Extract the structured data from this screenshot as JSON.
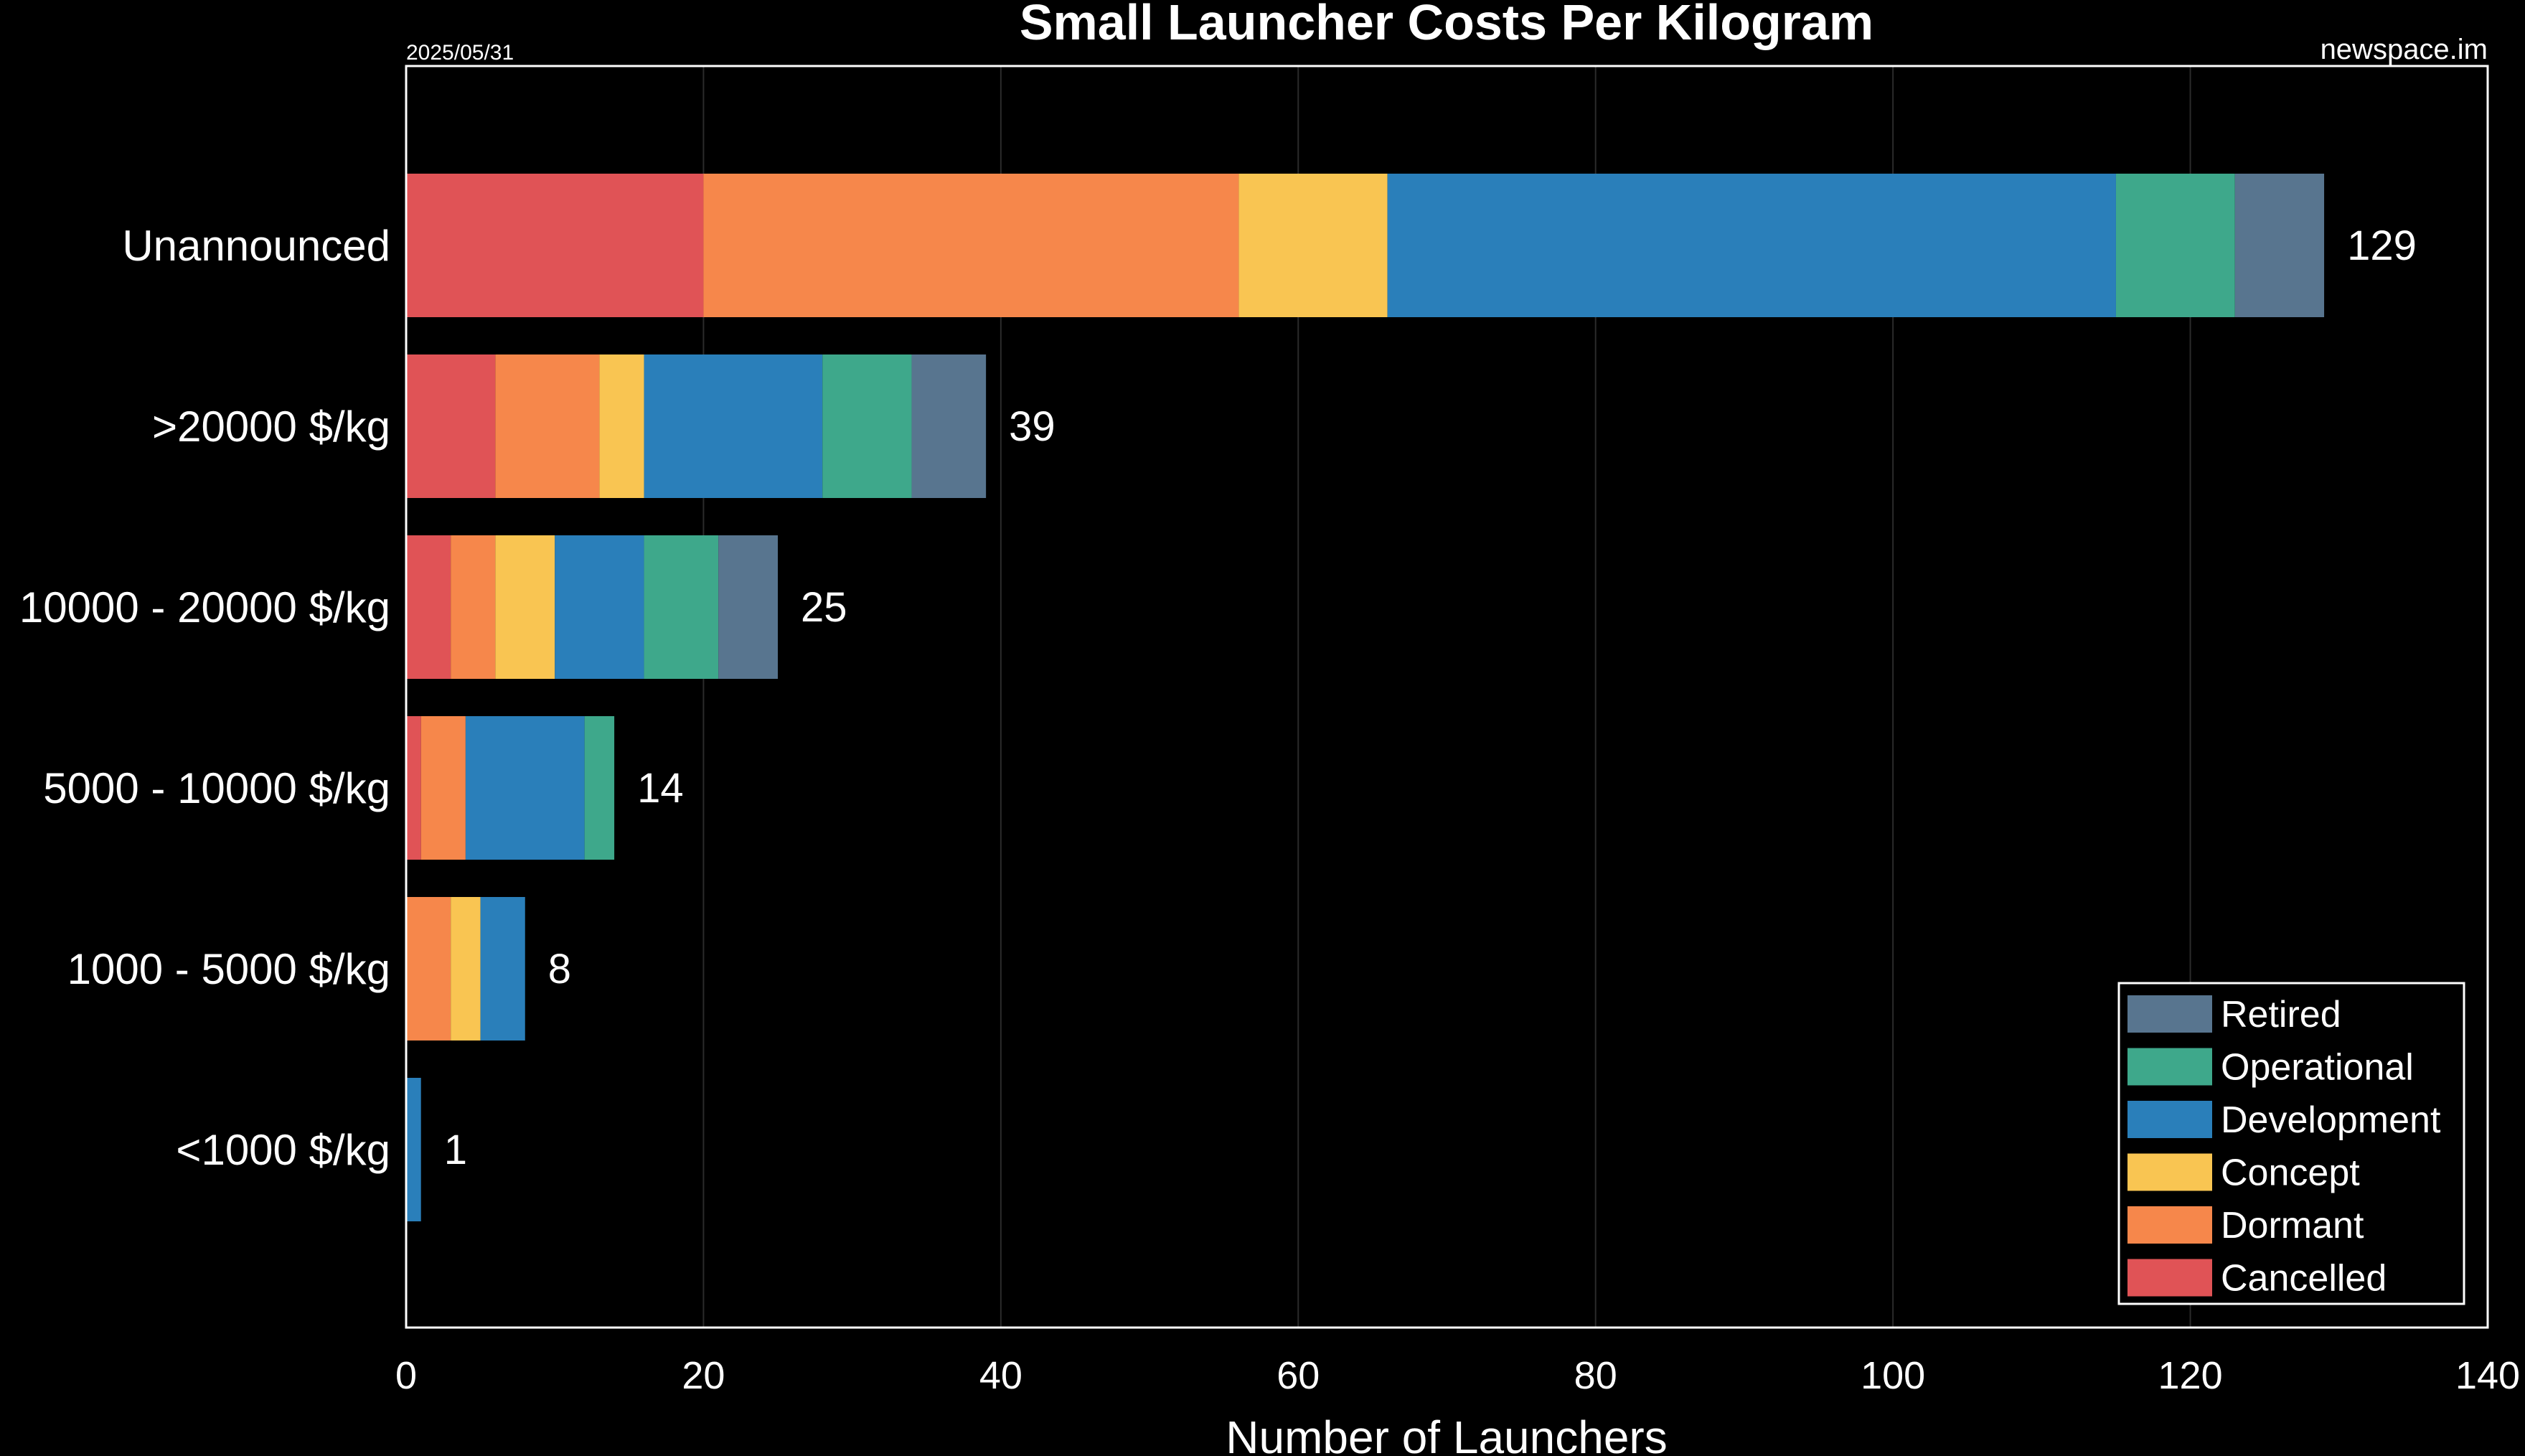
{
  "chart_data": {
    "type": "bar",
    "orientation": "horizontal",
    "stacked": true,
    "title": "Small Launcher Costs Per Kilogram",
    "date": "2025/05/31",
    "source": "newspace.im",
    "xlabel": "Number of Launchers",
    "ylabel": "",
    "xlim": [
      0,
      140
    ],
    "xticks": [
      0,
      20,
      40,
      60,
      80,
      100,
      120,
      140
    ],
    "grid": "vertical",
    "legend_position": "bottom-right",
    "categories": [
      "Unannounced",
      ">20000 $/kg",
      "10000 - 20000 $/kg",
      "5000 - 10000 $/kg",
      "1000 - 5000 $/kg",
      "<1000 $/kg"
    ],
    "series": [
      {
        "name": "Cancelled",
        "color": "#e05356",
        "values": [
          20,
          6,
          3,
          1,
          0,
          0
        ]
      },
      {
        "name": "Dormant",
        "color": "#f6874b",
        "values": [
          36,
          7,
          3,
          3,
          3,
          0
        ]
      },
      {
        "name": "Concept",
        "color": "#f9c552",
        "values": [
          10,
          3,
          4,
          0,
          2,
          0
        ]
      },
      {
        "name": "Development",
        "color": "#2a7fba",
        "values": [
          49,
          12,
          6,
          8,
          3,
          1
        ]
      },
      {
        "name": "Operational",
        "color": "#3ea88b",
        "values": [
          8,
          6,
          5,
          2,
          0,
          0
        ]
      },
      {
        "name": "Retired",
        "color": "#58758f",
        "values": [
          6,
          5,
          4,
          0,
          0,
          0
        ]
      }
    ],
    "totals": [
      "129",
      "39",
      "25",
      "14",
      "8",
      "1"
    ],
    "legend_order": [
      "Retired",
      "Operational",
      "Development",
      "Concept",
      "Dormant",
      "Cancelled"
    ]
  }
}
